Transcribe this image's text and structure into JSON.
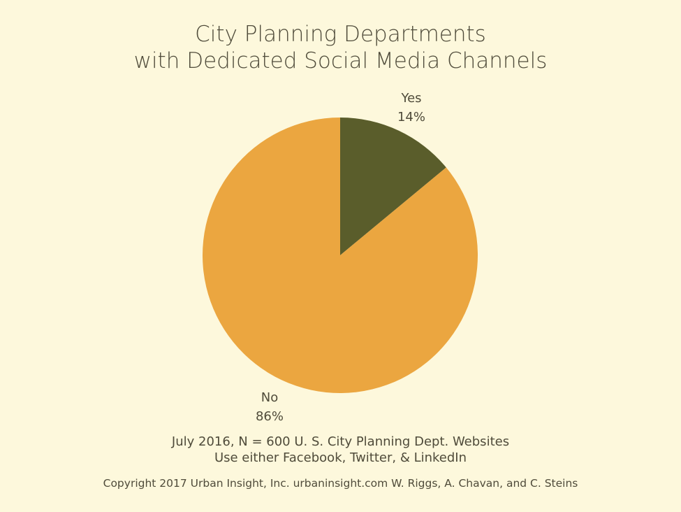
{
  "chart_data": {
    "type": "pie",
    "title": [
      "City Planning Departments",
      "with Dedicated Social Media Channels"
    ],
    "slices": [
      {
        "label": "Yes",
        "value": 14,
        "value_label": "14%",
        "color": "#5a5d2b"
      },
      {
        "label": "No",
        "value": 86,
        "value_label": "86%",
        "color": "#eba640"
      }
    ]
  },
  "notes": [
    "July 2016, N = 600 U. S. City Planning Dept. Websites",
    "Use either Facebook, Twitter, & LinkedIn"
  ],
  "copyright": "Copyright 2017 Urban Insight, Inc. urbaninsight.com  W. Riggs, A. Chavan, and C. Steins",
  "colors": {
    "background": "#fdf8dc",
    "text": "#4f4b3a"
  }
}
